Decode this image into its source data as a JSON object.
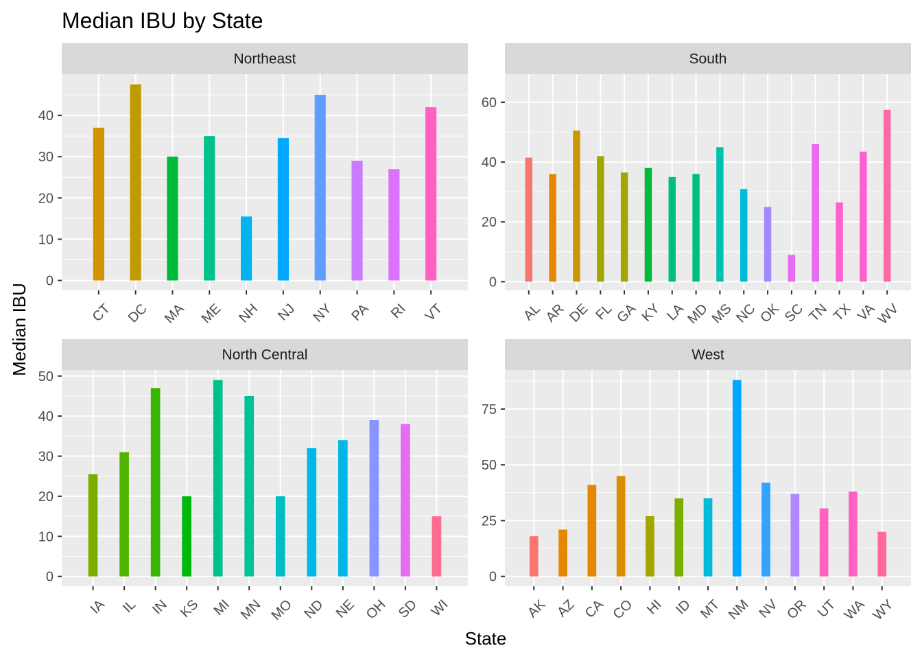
{
  "chart_data": {
    "type": "bar",
    "title": "Median IBU by State",
    "xlabel": "State",
    "ylabel": "Median IBU",
    "grid": true,
    "facets": [
      {
        "name": "Northeast",
        "categories": [
          "CT",
          "DC",
          "MA",
          "ME",
          "NH",
          "NJ",
          "NY",
          "PA",
          "RI",
          "VT"
        ],
        "values": [
          37,
          47.5,
          30,
          35,
          15.5,
          34.5,
          45,
          29,
          27,
          42
        ],
        "colors": [
          "#D39200",
          "#C09B00",
          "#00BA38",
          "#00C08B",
          "#00B4F0",
          "#00A9FF",
          "#619CFF",
          "#C77CFF",
          "#DB72FB",
          "#FF61C3"
        ],
        "yticks": [
          0,
          10,
          20,
          30,
          40
        ],
        "ylim": [
          -2.4,
          50
        ]
      },
      {
        "name": "South",
        "categories": [
          "AL",
          "AR",
          "DE",
          "FL",
          "GA",
          "KY",
          "LA",
          "MD",
          "MS",
          "NC",
          "OK",
          "SC",
          "TN",
          "TX",
          "VA",
          "WV"
        ],
        "values": [
          41.5,
          36,
          50.5,
          42,
          36.5,
          38,
          35,
          36,
          45,
          31,
          25,
          9,
          46,
          26.5,
          43.5,
          57.5
        ],
        "colors": [
          "#F8766D",
          "#E58700",
          "#C99800",
          "#A3A500",
          "#A3A500",
          "#00BA38",
          "#00BF7D",
          "#00BF7D",
          "#00C0AF",
          "#00BCD8",
          "#A58AFF",
          "#E76BF3",
          "#E76BF3",
          "#FD61D1",
          "#FD61D1",
          "#FF67A4"
        ],
        "yticks": [
          0,
          20,
          40,
          60
        ],
        "ylim": [
          -2.9,
          69.4
        ]
      },
      {
        "name": "North Central",
        "categories": [
          "IA",
          "IL",
          "IN",
          "KS",
          "MI",
          "MN",
          "MO",
          "ND",
          "NE",
          "OH",
          "SD",
          "WI"
        ],
        "values": [
          25.5,
          31,
          47,
          20,
          49,
          45,
          20,
          32,
          34,
          39,
          38,
          15
        ],
        "colors": [
          "#7CAE00",
          "#53B400",
          "#39B600",
          "#00B70C",
          "#00C08B",
          "#00C19A",
          "#00BFC4",
          "#00B8E7",
          "#00B8E7",
          "#8B93FF",
          "#E76BF3",
          "#FF6C91"
        ],
        "yticks": [
          0,
          10,
          20,
          30,
          40,
          50
        ],
        "ylim": [
          -2.45,
          51.5
        ]
      },
      {
        "name": "West",
        "categories": [
          "AK",
          "AZ",
          "CA",
          "CO",
          "HI",
          "ID",
          "MT",
          "NM",
          "NV",
          "OR",
          "UT",
          "WA",
          "WY"
        ],
        "values": [
          18,
          21,
          41,
          45,
          27,
          35,
          35,
          88,
          42,
          37,
          30.5,
          38,
          20
        ],
        "colors": [
          "#F8766D",
          "#E58700",
          "#E58700",
          "#D89000",
          "#A3A500",
          "#7CAE00",
          "#00BCD8",
          "#00A9FF",
          "#35A2FF",
          "#B385FF",
          "#FF61C3",
          "#FF61C3",
          "#FF6A98"
        ],
        "yticks": [
          0,
          25,
          50,
          75
        ],
        "ylim": [
          -4.4,
          92.5
        ]
      }
    ]
  }
}
